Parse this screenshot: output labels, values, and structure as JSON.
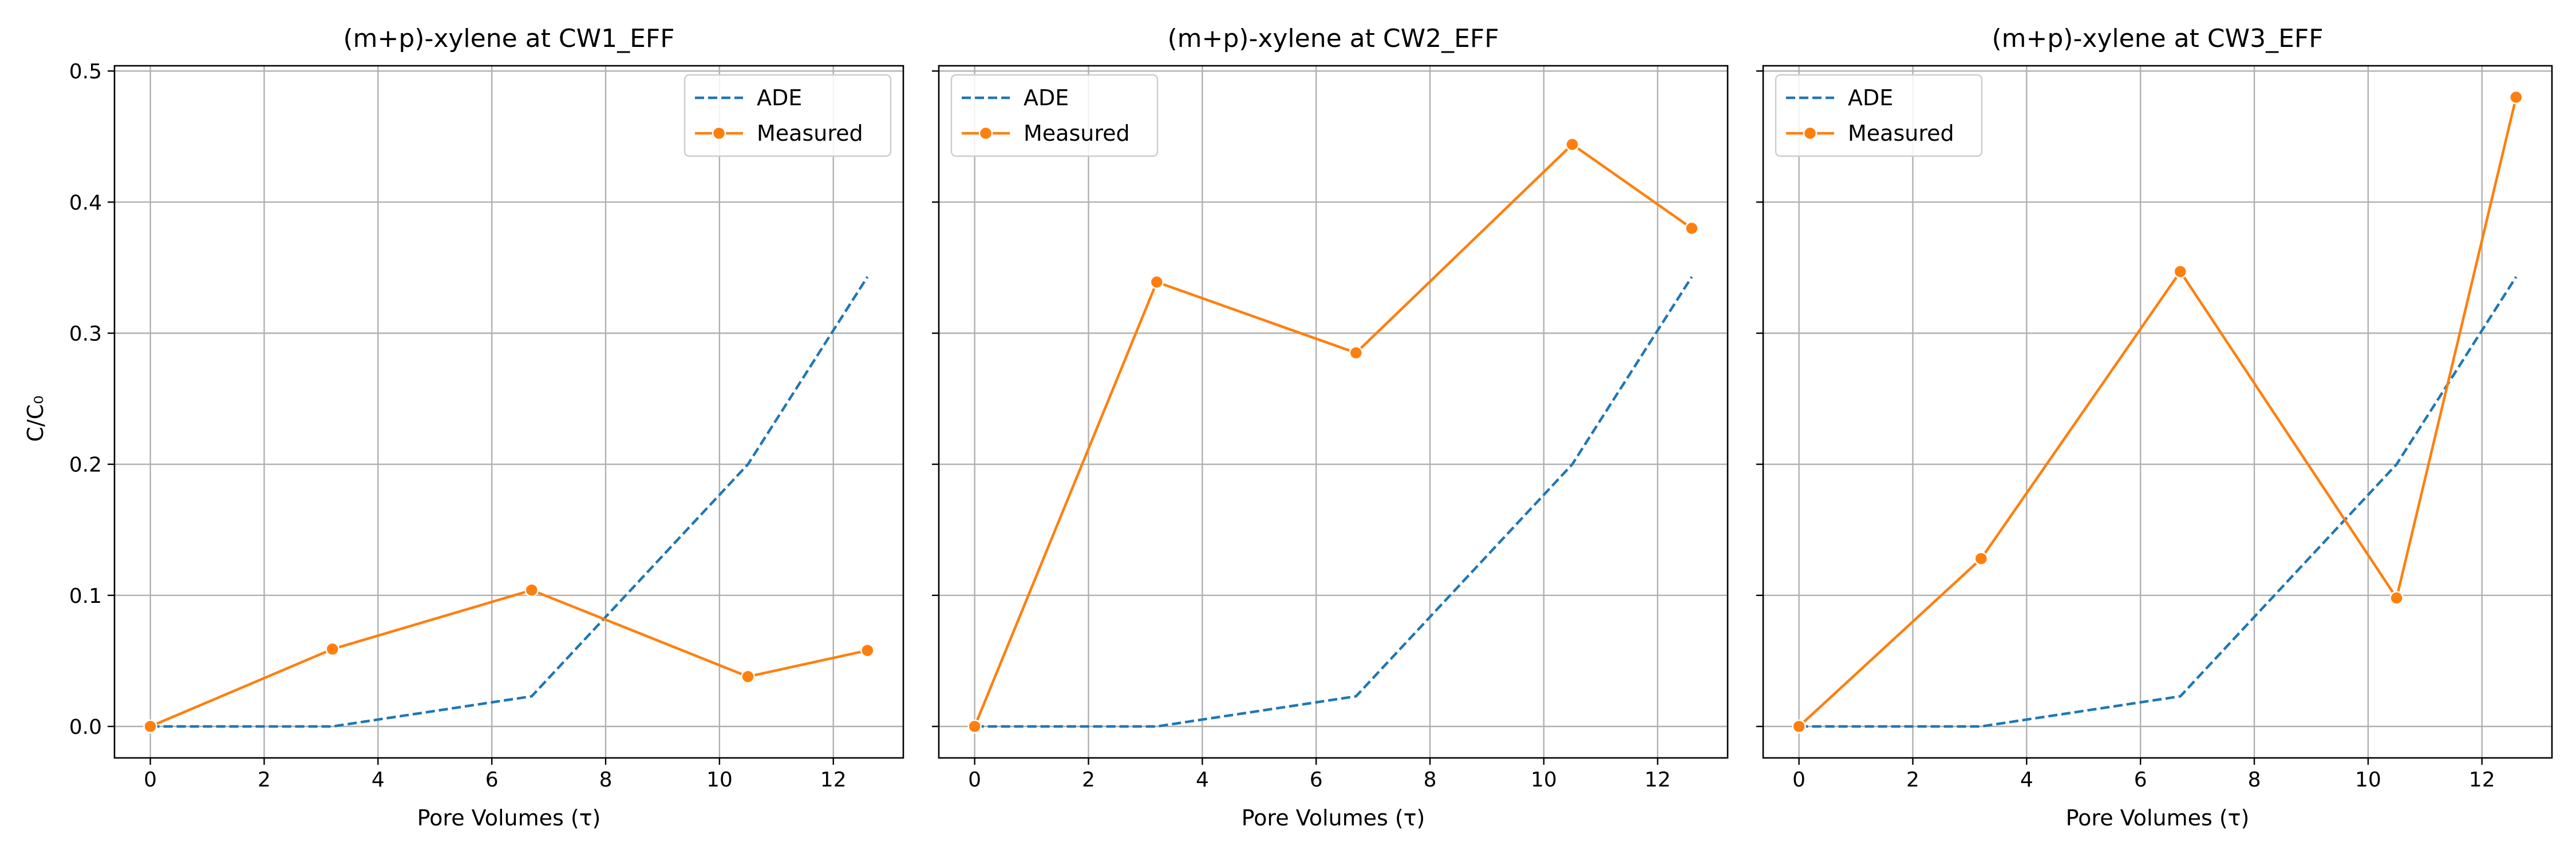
{
  "figure": {
    "ylabel": "C/C₀",
    "colors": {
      "ade": "#1f77b4",
      "measured": "#ff7f0e",
      "grid": "#b0b0b0",
      "axes": "#000000",
      "legend_border": "#cccccc"
    }
  },
  "chart_data": [
    {
      "type": "line",
      "title": "(m+p)-xylene at CW1_EFF",
      "xlabel": "Pore Volumes (τ)",
      "ylabel": "C/C₀",
      "xlim": [
        -0.63,
        13.23
      ],
      "ylim": [
        -0.024,
        0.504
      ],
      "xticks": [
        0,
        2,
        4,
        6,
        8,
        10,
        12
      ],
      "yticks": [
        0.0,
        0.1,
        0.2,
        0.3,
        0.4,
        0.5
      ],
      "ytick_labels": [
        "0.0",
        "0.1",
        "0.2",
        "0.3",
        "0.4",
        "0.5"
      ],
      "grid": true,
      "legend": "top-right",
      "series": [
        {
          "name": "ADE",
          "style": "dashed",
          "marker": false,
          "x": [
            0,
            3.2,
            6.7,
            10.5,
            12.6
          ],
          "y": [
            0.0,
            0.0,
            0.023,
            0.2,
            0.343
          ]
        },
        {
          "name": "Measured",
          "style": "solid",
          "marker": true,
          "x": [
            0,
            3.2,
            6.7,
            10.5,
            12.6
          ],
          "y": [
            0.0,
            0.059,
            0.104,
            0.038,
            0.058
          ]
        }
      ]
    },
    {
      "type": "line",
      "title": "(m+p)-xylene at CW2_EFF",
      "xlabel": "Pore Volumes (τ)",
      "ylabel": "",
      "xlim": [
        -0.63,
        13.23
      ],
      "ylim": [
        -0.024,
        0.504
      ],
      "xticks": [
        0,
        2,
        4,
        6,
        8,
        10,
        12
      ],
      "yticks": [
        0.0,
        0.1,
        0.2,
        0.3,
        0.4,
        0.5
      ],
      "ytick_labels": [],
      "grid": true,
      "legend": "top-left",
      "series": [
        {
          "name": "ADE",
          "style": "dashed",
          "marker": false,
          "x": [
            0,
            3.2,
            6.7,
            10.5,
            12.6
          ],
          "y": [
            0.0,
            0.0,
            0.023,
            0.2,
            0.343
          ]
        },
        {
          "name": "Measured",
          "style": "solid",
          "marker": true,
          "x": [
            0,
            3.2,
            6.7,
            10.5,
            12.6
          ],
          "y": [
            0.0,
            0.339,
            0.285,
            0.444,
            0.38
          ]
        }
      ]
    },
    {
      "type": "line",
      "title": "(m+p)-xylene at CW3_EFF",
      "xlabel": "Pore Volumes (τ)",
      "ylabel": "",
      "xlim": [
        -0.63,
        13.23
      ],
      "ylim": [
        -0.024,
        0.504
      ],
      "xticks": [
        0,
        2,
        4,
        6,
        8,
        10,
        12
      ],
      "yticks": [
        0.0,
        0.1,
        0.2,
        0.3,
        0.4,
        0.5
      ],
      "ytick_labels": [],
      "grid": true,
      "legend": "top-left",
      "series": [
        {
          "name": "ADE",
          "style": "dashed",
          "marker": false,
          "x": [
            0,
            3.2,
            6.7,
            10.5,
            12.6
          ],
          "y": [
            0.0,
            0.0,
            0.023,
            0.2,
            0.343
          ]
        },
        {
          "name": "Measured",
          "style": "solid",
          "marker": true,
          "x": [
            0,
            3.2,
            6.7,
            10.5,
            12.6
          ],
          "y": [
            0.0,
            0.128,
            0.347,
            0.098,
            0.48
          ]
        }
      ]
    }
  ]
}
